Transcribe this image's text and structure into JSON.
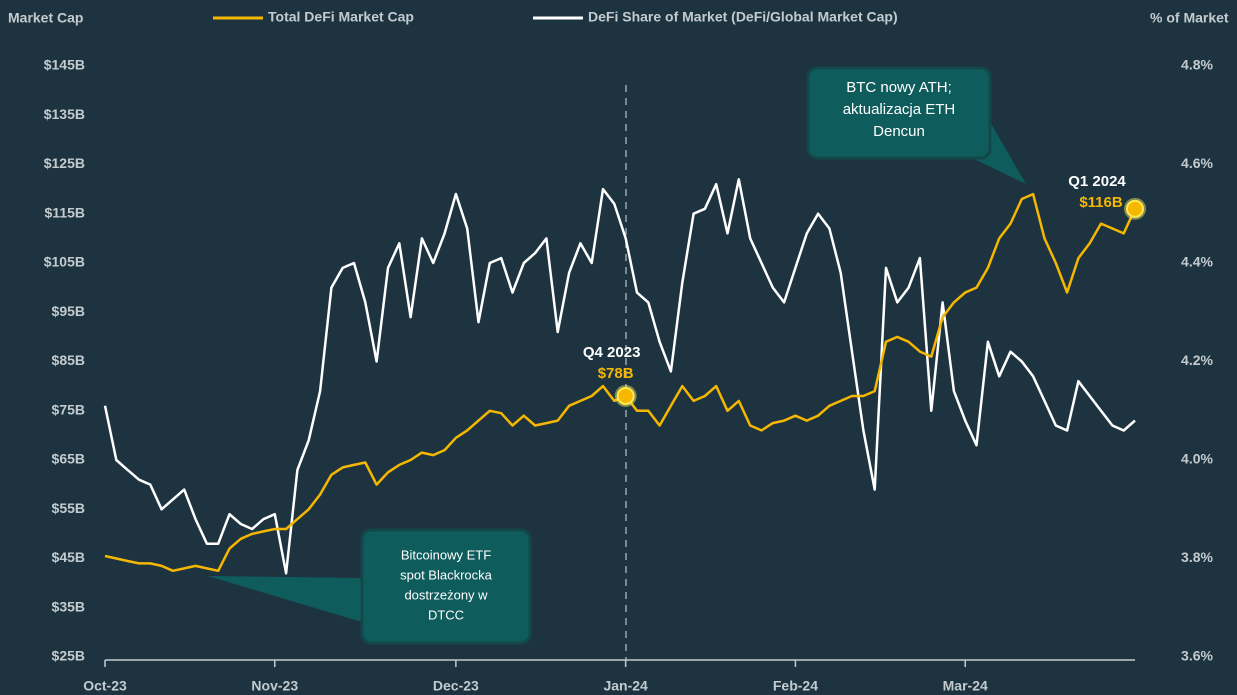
{
  "chart_data": {
    "type": "line",
    "y_label": "Market Cap",
    "y2_label": "% of Market",
    "categories": [
      "Oct-23",
      null,
      null,
      null,
      null,
      null,
      null,
      null,
      null,
      null,
      null,
      null,
      null,
      null,
      null,
      "Nov-23",
      null,
      null,
      null,
      null,
      null,
      null,
      null,
      null,
      null,
      null,
      null,
      null,
      null,
      null,
      null,
      "Dec-23",
      null,
      null,
      null,
      null,
      null,
      null,
      null,
      null,
      null,
      null,
      null,
      null,
      null,
      null,
      "Jan-24",
      null,
      null,
      null,
      null,
      null,
      null,
      null,
      null,
      null,
      null,
      null,
      null,
      null,
      null,
      "Feb-24",
      null,
      null,
      null,
      null,
      null,
      null,
      null,
      null,
      null,
      null,
      null,
      null,
      null,
      null,
      "Mar-24",
      null,
      null,
      null,
      null,
      null,
      null,
      null,
      null,
      null,
      null,
      null,
      null,
      null,
      null,
      null
    ],
    "series": [
      {
        "name": "Total DeFi Market Cap",
        "color": "#f5b700",
        "axis": "y",
        "values": [
          45.5,
          45,
          44.5,
          44,
          44,
          43.5,
          42.5,
          43,
          43.5,
          43,
          42.5,
          47,
          49,
          50,
          50.5,
          51,
          51,
          53,
          55,
          58,
          62,
          63.5,
          64,
          64.5,
          60,
          62.5,
          64,
          65,
          66.5,
          66,
          67,
          69.5,
          71,
          73,
          75,
          74.5,
          72,
          74,
          72,
          72.5,
          73,
          76,
          77,
          78,
          80,
          77,
          78,
          75,
          75,
          72,
          76,
          80,
          77,
          78,
          80,
          75,
          77,
          72,
          71,
          72.5,
          73,
          74,
          73,
          74,
          76,
          77,
          78,
          78,
          79,
          89,
          90,
          89,
          87,
          86,
          94,
          97,
          99,
          100,
          104,
          110,
          113,
          118,
          119,
          110,
          105,
          99,
          106,
          109,
          113,
          112,
          111,
          116
        ],
        "value_labels": [
          null,
          null,
          null,
          null,
          null,
          null,
          null,
          null,
          null,
          null,
          null,
          null,
          null,
          null,
          null,
          null,
          null,
          null,
          null,
          null,
          null,
          null,
          null,
          null,
          null,
          null,
          null,
          null,
          null,
          null,
          null,
          null,
          null,
          null,
          null,
          null,
          null,
          null,
          null,
          null,
          null,
          null,
          null,
          null,
          null,
          null,
          "$78B",
          null,
          null,
          null,
          null,
          null,
          null,
          null,
          null,
          null,
          null,
          null,
          null,
          null,
          null,
          null,
          null,
          null,
          null,
          null,
          null,
          null,
          null,
          null,
          null,
          null,
          null,
          null,
          null,
          null,
          null,
          null,
          null,
          null,
          null,
          null,
          null,
          null,
          null,
          null,
          null,
          null,
          null,
          null,
          null,
          "$116B"
        ]
      },
      {
        "name": "DeFi Share of Market (DeFi/Global Market Cap)",
        "color": "#ffffff",
        "axis": "y2",
        "values": [
          4.11,
          4.0,
          3.98,
          3.96,
          3.95,
          3.9,
          3.92,
          3.94,
          3.88,
          3.83,
          3.83,
          3.89,
          3.87,
          3.86,
          3.88,
          3.89,
          3.77,
          3.98,
          4.04,
          4.14,
          4.35,
          4.39,
          4.4,
          4.32,
          4.2,
          4.39,
          4.44,
          4.29,
          4.45,
          4.4,
          4.46,
          4.54,
          4.47,
          4.28,
          4.4,
          4.41,
          4.34,
          4.4,
          4.42,
          4.45,
          4.26,
          4.38,
          4.44,
          4.4,
          4.55,
          4.52,
          4.45,
          4.34,
          4.32,
          4.24,
          4.18,
          4.36,
          4.5,
          4.51,
          4.56,
          4.46,
          4.57,
          4.45,
          4.4,
          4.35,
          4.32,
          4.39,
          4.46,
          4.5,
          4.47,
          4.38,
          4.22,
          4.06,
          3.94,
          4.39,
          4.32,
          4.35,
          4.41,
          4.1,
          4.32,
          4.14,
          4.08,
          4.03,
          4.24,
          4.17,
          4.22,
          4.2,
          4.17,
          4.12,
          4.07,
          4.06,
          4.16,
          4.13,
          4.1,
          4.07,
          4.06,
          4.08
        ]
      }
    ],
    "period_labels": [
      "Q4 2023",
      "Q1 2024"
    ],
    "annotations": [
      {
        "text": [
          "Bitcoinowy ETF",
          "spot Blackrocka",
          "dostrzeżony w",
          "DTCC"
        ]
      },
      {
        "text": [
          "BTC nowy ATH;",
          "aktualizacja ETH",
          "Dencun"
        ]
      }
    ],
    "ylim": [
      25,
      145
    ],
    "yticks": [
      {
        "value": 25,
        "label": "$25B"
      },
      {
        "value": 35,
        "label": "$35B"
      },
      {
        "value": 45,
        "label": "$45B"
      },
      {
        "value": 55,
        "label": "$55B"
      },
      {
        "value": 65,
        "label": "$65B"
      },
      {
        "value": 75,
        "label": "$75B"
      },
      {
        "value": 85,
        "label": "$85B"
      },
      {
        "value": 95,
        "label": "$95B"
      },
      {
        "value": 105,
        "label": "$105B"
      },
      {
        "value": 115,
        "label": "$115B"
      },
      {
        "value": 125,
        "label": "$125B"
      },
      {
        "value": 135,
        "label": "$135B"
      },
      {
        "value": 145,
        "label": "$145B"
      }
    ],
    "y2lim": [
      3.6,
      4.8
    ],
    "y2ticks": [
      {
        "value": 3.6,
        "label": "3.6%"
      },
      {
        "value": 3.8,
        "label": "3.8%"
      },
      {
        "value": 4.0,
        "label": "4.0%"
      },
      {
        "value": 4.2,
        "label": "4.2%"
      },
      {
        "value": 4.4,
        "label": "4.4%"
      },
      {
        "value": 4.6,
        "label": "4.6%"
      },
      {
        "value": 4.8,
        "label": "4.8%"
      }
    ]
  }
}
